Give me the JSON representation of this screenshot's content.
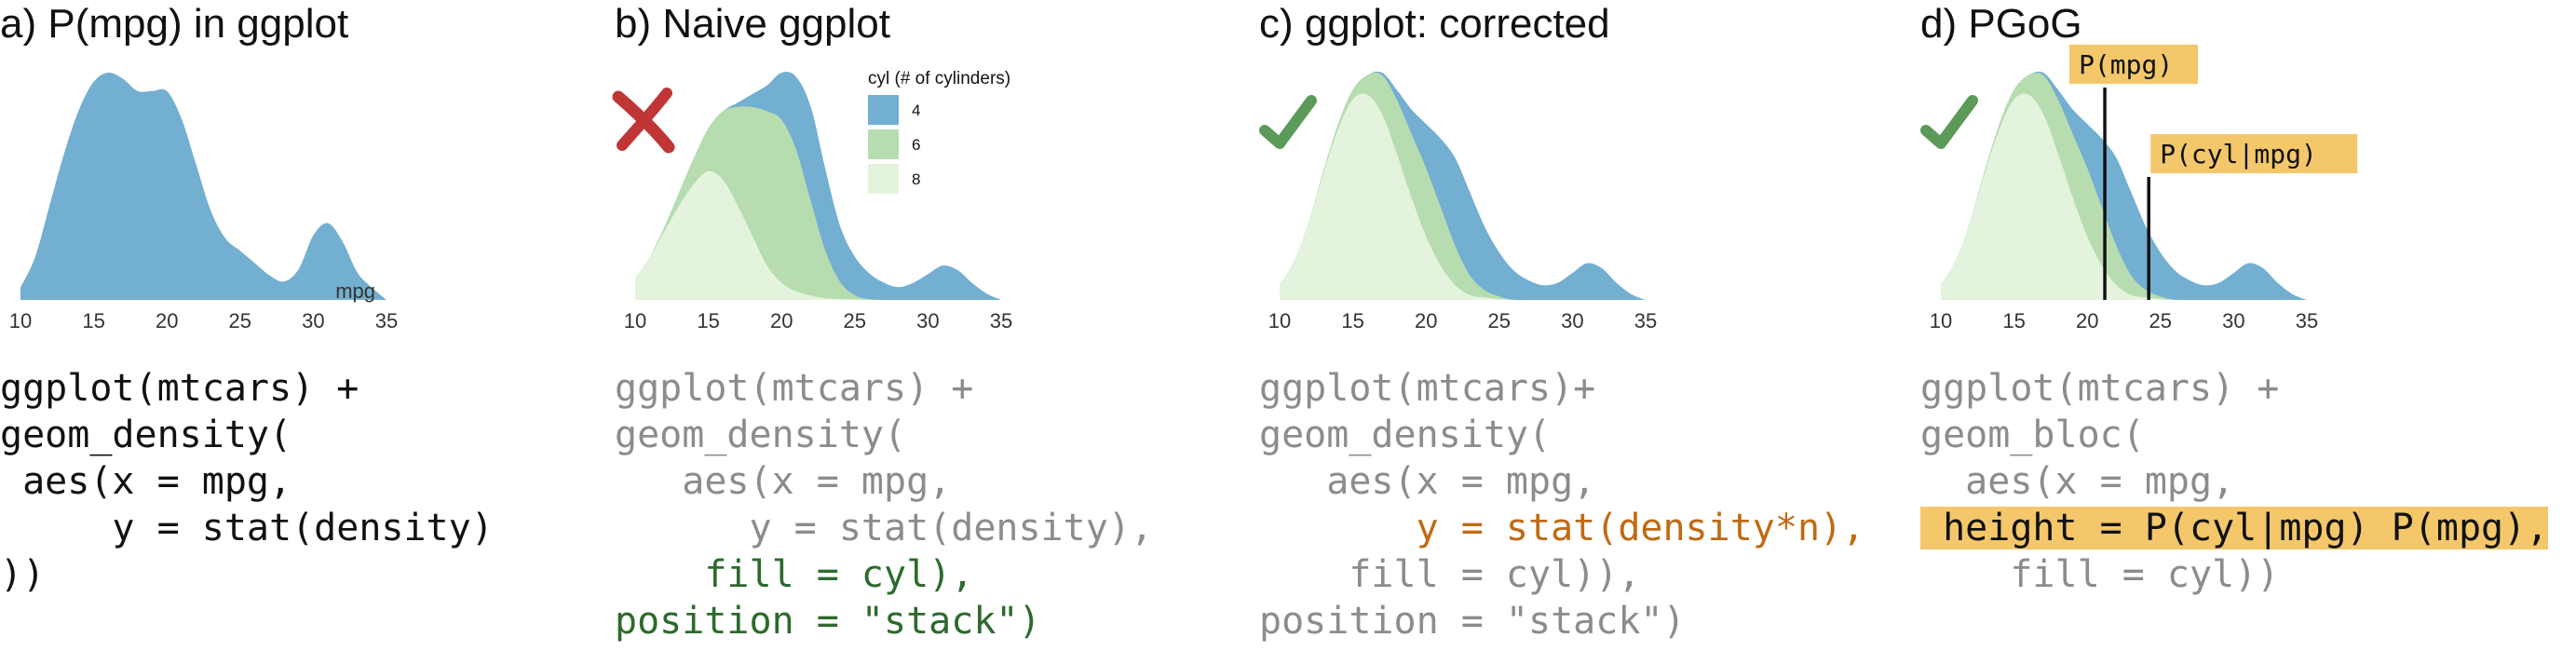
{
  "colors": {
    "cyl4": "#73afd1",
    "cyl6": "#b6dcb0",
    "cyl8": "#e4f3dd",
    "cross": "#c03636",
    "check": "#5c9a5a",
    "annotation_bg": "#f3c76a",
    "code_black": "#111111",
    "code_gray": "#8c8c8c",
    "code_green": "#2d6a2b",
    "code_orange": "#c06a12"
  },
  "panels": [
    {
      "title": "a) P(mpg) in ggplot",
      "code": [
        [
          {
            "t": "ggplot(mtcars) +",
            "s": "black"
          }
        ],
        [
          {
            "t": "geom_density(",
            "s": "black"
          }
        ],
        [
          {
            "t": " aes(x = mpg,",
            "s": "black"
          }
        ],
        [
          {
            "t": "     y = stat(density)",
            "s": "black"
          }
        ],
        [
          {
            "t": "))",
            "s": "black"
          }
        ]
      ]
    },
    {
      "title": "b) Naive ggplot",
      "code": [
        [
          {
            "t": "ggplot(mtcars) +",
            "s": "gray"
          }
        ],
        [
          {
            "t": "geom_density(",
            "s": "gray"
          }
        ],
        [
          {
            "t": "   aes(x = mpg,",
            "s": "gray"
          }
        ],
        [
          {
            "t": "      y = stat(density),",
            "s": "gray"
          }
        ],
        [
          {
            "t": "    fill = cyl),",
            "s": "green"
          }
        ],
        [
          {
            "t": "position = \"stack\")",
            "s": "green"
          }
        ]
      ]
    },
    {
      "title": "c) ggplot: corrected",
      "code": [
        [
          {
            "t": "ggplot(mtcars)+",
            "s": "gray"
          }
        ],
        [
          {
            "t": "geom_density(",
            "s": "gray"
          }
        ],
        [
          {
            "t": "   aes(x = mpg,",
            "s": "gray"
          }
        ],
        [
          {
            "t": "       y = stat(density*n),",
            "s": "orange"
          }
        ],
        [
          {
            "t": "    fill = cyl)),",
            "s": "gray"
          }
        ],
        [
          {
            "t": "position = \"stack\")",
            "s": "gray"
          }
        ]
      ]
    },
    {
      "title": "d) PGoG",
      "code": [
        [
          {
            "t": "ggplot(mtcars) +",
            "s": "gray"
          }
        ],
        [
          {
            "t": "geom_bloc(",
            "s": "gray"
          }
        ],
        [
          {
            "t": "  aes(x = mpg,",
            "s": "gray"
          }
        ],
        [
          {
            "t": " height = P(cyl|mpg) P(mpg),",
            "s": "hl"
          }
        ],
        [
          {
            "t": "    fill = cyl))",
            "s": "gray"
          }
        ]
      ]
    }
  ],
  "legend": {
    "title": "cyl (# of cylinders)",
    "entries": [
      "4",
      "6",
      "8"
    ]
  },
  "marks": {
    "b": "cross",
    "c": "check",
    "d": "check"
  },
  "annotations": {
    "p_mpg": "P(mpg)",
    "p_cyl_mpg": "P(cyl|mpg)"
  },
  "chart_data": [
    {
      "type": "area",
      "panel": "a",
      "title": "a) P(mpg) in ggplot",
      "xlabel": "mpg",
      "ylabel": "",
      "xlim": [
        10,
        35
      ],
      "xticks": [
        10,
        15,
        20,
        25,
        30,
        35
      ],
      "grid": false,
      "legend": "none",
      "stacked": false,
      "x": [
        10,
        11,
        12,
        13,
        14,
        15,
        16,
        17,
        18,
        19,
        20,
        21,
        22,
        23,
        24,
        25,
        26,
        27,
        28,
        29,
        30,
        31,
        32,
        33,
        34,
        35
      ],
      "series": [
        {
          "values": [
            0.004,
            0.014,
            0.031,
            0.048,
            0.062,
            0.071,
            0.074,
            0.072,
            0.068,
            0.068,
            0.068,
            0.059,
            0.044,
            0.029,
            0.02,
            0.016,
            0.012,
            0.008,
            0.006,
            0.01,
            0.021,
            0.025,
            0.019,
            0.009,
            0.004,
            0.0
          ]
        }
      ]
    },
    {
      "type": "area",
      "panel": "b",
      "title": "b) Naive ggplot",
      "xlabel": "",
      "ylabel": "",
      "xlim": [
        10,
        35
      ],
      "xticks": [
        10,
        15,
        20,
        25,
        30,
        35
      ],
      "grid": false,
      "legend": "top-right",
      "stacked": true,
      "x": [
        10,
        11,
        12,
        13,
        14,
        15,
        16,
        17,
        18,
        19,
        20,
        21,
        22,
        23,
        24,
        25,
        26,
        27,
        28,
        29,
        30,
        31,
        32,
        33,
        34,
        35
      ],
      "series": [
        {
          "name": "8",
          "values": [
            0.05,
            0.1,
            0.16,
            0.22,
            0.27,
            0.3,
            0.28,
            0.22,
            0.15,
            0.08,
            0.04,
            0.02,
            0.01,
            0.004,
            0.002,
            0.001,
            0,
            0,
            0,
            0,
            0,
            0,
            0,
            0,
            0,
            0
          ]
        },
        {
          "name": "6",
          "values": [
            0,
            0,
            0.01,
            0.03,
            0.06,
            0.1,
            0.16,
            0.23,
            0.3,
            0.36,
            0.38,
            0.33,
            0.22,
            0.11,
            0.04,
            0.01,
            0.002,
            0,
            0,
            0,
            0,
            0,
            0,
            0,
            0,
            0
          ]
        },
        {
          "name": "4",
          "values": [
            0,
            0,
            0,
            0,
            0,
            0,
            0,
            0.01,
            0.03,
            0.06,
            0.11,
            0.17,
            0.22,
            0.19,
            0.13,
            0.09,
            0.06,
            0.04,
            0.03,
            0.04,
            0.06,
            0.08,
            0.07,
            0.04,
            0.015,
            0.0
          ]
        }
      ]
    },
    {
      "type": "area",
      "panel": "c",
      "title": "c) ggplot: corrected",
      "xlabel": "",
      "ylabel": "",
      "xlim": [
        10,
        35
      ],
      "xticks": [
        10,
        15,
        20,
        25,
        30,
        35
      ],
      "grid": false,
      "legend": "none",
      "stacked": true,
      "x": [
        10,
        11,
        12,
        13,
        14,
        15,
        16,
        17,
        18,
        19,
        20,
        21,
        22,
        23,
        24,
        25,
        26,
        27,
        28,
        29,
        30,
        31,
        32,
        33,
        34,
        35
      ],
      "series": [
        {
          "name": "8",
          "values": [
            0.3,
            0.8,
            1.6,
            2.6,
            3.5,
            4.1,
            4.2,
            3.8,
            3.0,
            2.1,
            1.3,
            0.7,
            0.3,
            0.1,
            0.05,
            0.02,
            0,
            0,
            0,
            0,
            0,
            0,
            0,
            0,
            0,
            0
          ]
        },
        {
          "name": "6",
          "values": [
            0,
            0,
            0,
            0.05,
            0.1,
            0.2,
            0.4,
            0.8,
            1.1,
            1.3,
            1.4,
            1.2,
            0.8,
            0.4,
            0.15,
            0.05,
            0,
            0,
            0,
            0,
            0,
            0,
            0,
            0,
            0,
            0
          ]
        },
        {
          "name": "4",
          "values": [
            0,
            0,
            0,
            0,
            0,
            0,
            0,
            0.05,
            0.2,
            0.5,
            0.9,
            1.4,
            1.8,
            1.7,
            1.3,
            0.9,
            0.6,
            0.4,
            0.3,
            0.35,
            0.55,
            0.75,
            0.65,
            0.35,
            0.12,
            0.0
          ]
        }
      ]
    },
    {
      "type": "area",
      "panel": "d",
      "title": "d) PGoG",
      "xlabel": "",
      "ylabel": "",
      "xlim": [
        10,
        35
      ],
      "xticks": [
        10,
        15,
        20,
        25,
        30,
        35
      ],
      "grid": false,
      "legend": "none",
      "stacked": true,
      "x": [
        10,
        11,
        12,
        13,
        14,
        15,
        16,
        17,
        18,
        19,
        20,
        21,
        22,
        23,
        24,
        25,
        26,
        27,
        28,
        29,
        30,
        31,
        32,
        33,
        34,
        35
      ],
      "series": [
        {
          "name": "8",
          "values": [
            0.3,
            0.8,
            1.6,
            2.6,
            3.5,
            4.1,
            4.2,
            3.8,
            3.0,
            2.1,
            1.3,
            0.7,
            0.3,
            0.1,
            0.05,
            0.02,
            0,
            0,
            0,
            0,
            0,
            0,
            0,
            0,
            0,
            0
          ]
        },
        {
          "name": "6",
          "values": [
            0,
            0,
            0,
            0.05,
            0.1,
            0.2,
            0.4,
            0.8,
            1.1,
            1.3,
            1.4,
            1.2,
            0.8,
            0.4,
            0.15,
            0.05,
            0,
            0,
            0,
            0,
            0,
            0,
            0,
            0,
            0,
            0
          ]
        },
        {
          "name": "4",
          "values": [
            0,
            0,
            0,
            0,
            0,
            0,
            0,
            0.05,
            0.2,
            0.5,
            0.9,
            1.4,
            1.8,
            1.7,
            1.3,
            0.9,
            0.6,
            0.4,
            0.3,
            0.35,
            0.55,
            0.75,
            0.65,
            0.35,
            0.12,
            0.0
          ]
        }
      ],
      "annotations": [
        {
          "label": "P(mpg)",
          "x": 21.2
        },
        {
          "label": "P(cyl|mpg)",
          "x": 24.2
        }
      ]
    }
  ]
}
